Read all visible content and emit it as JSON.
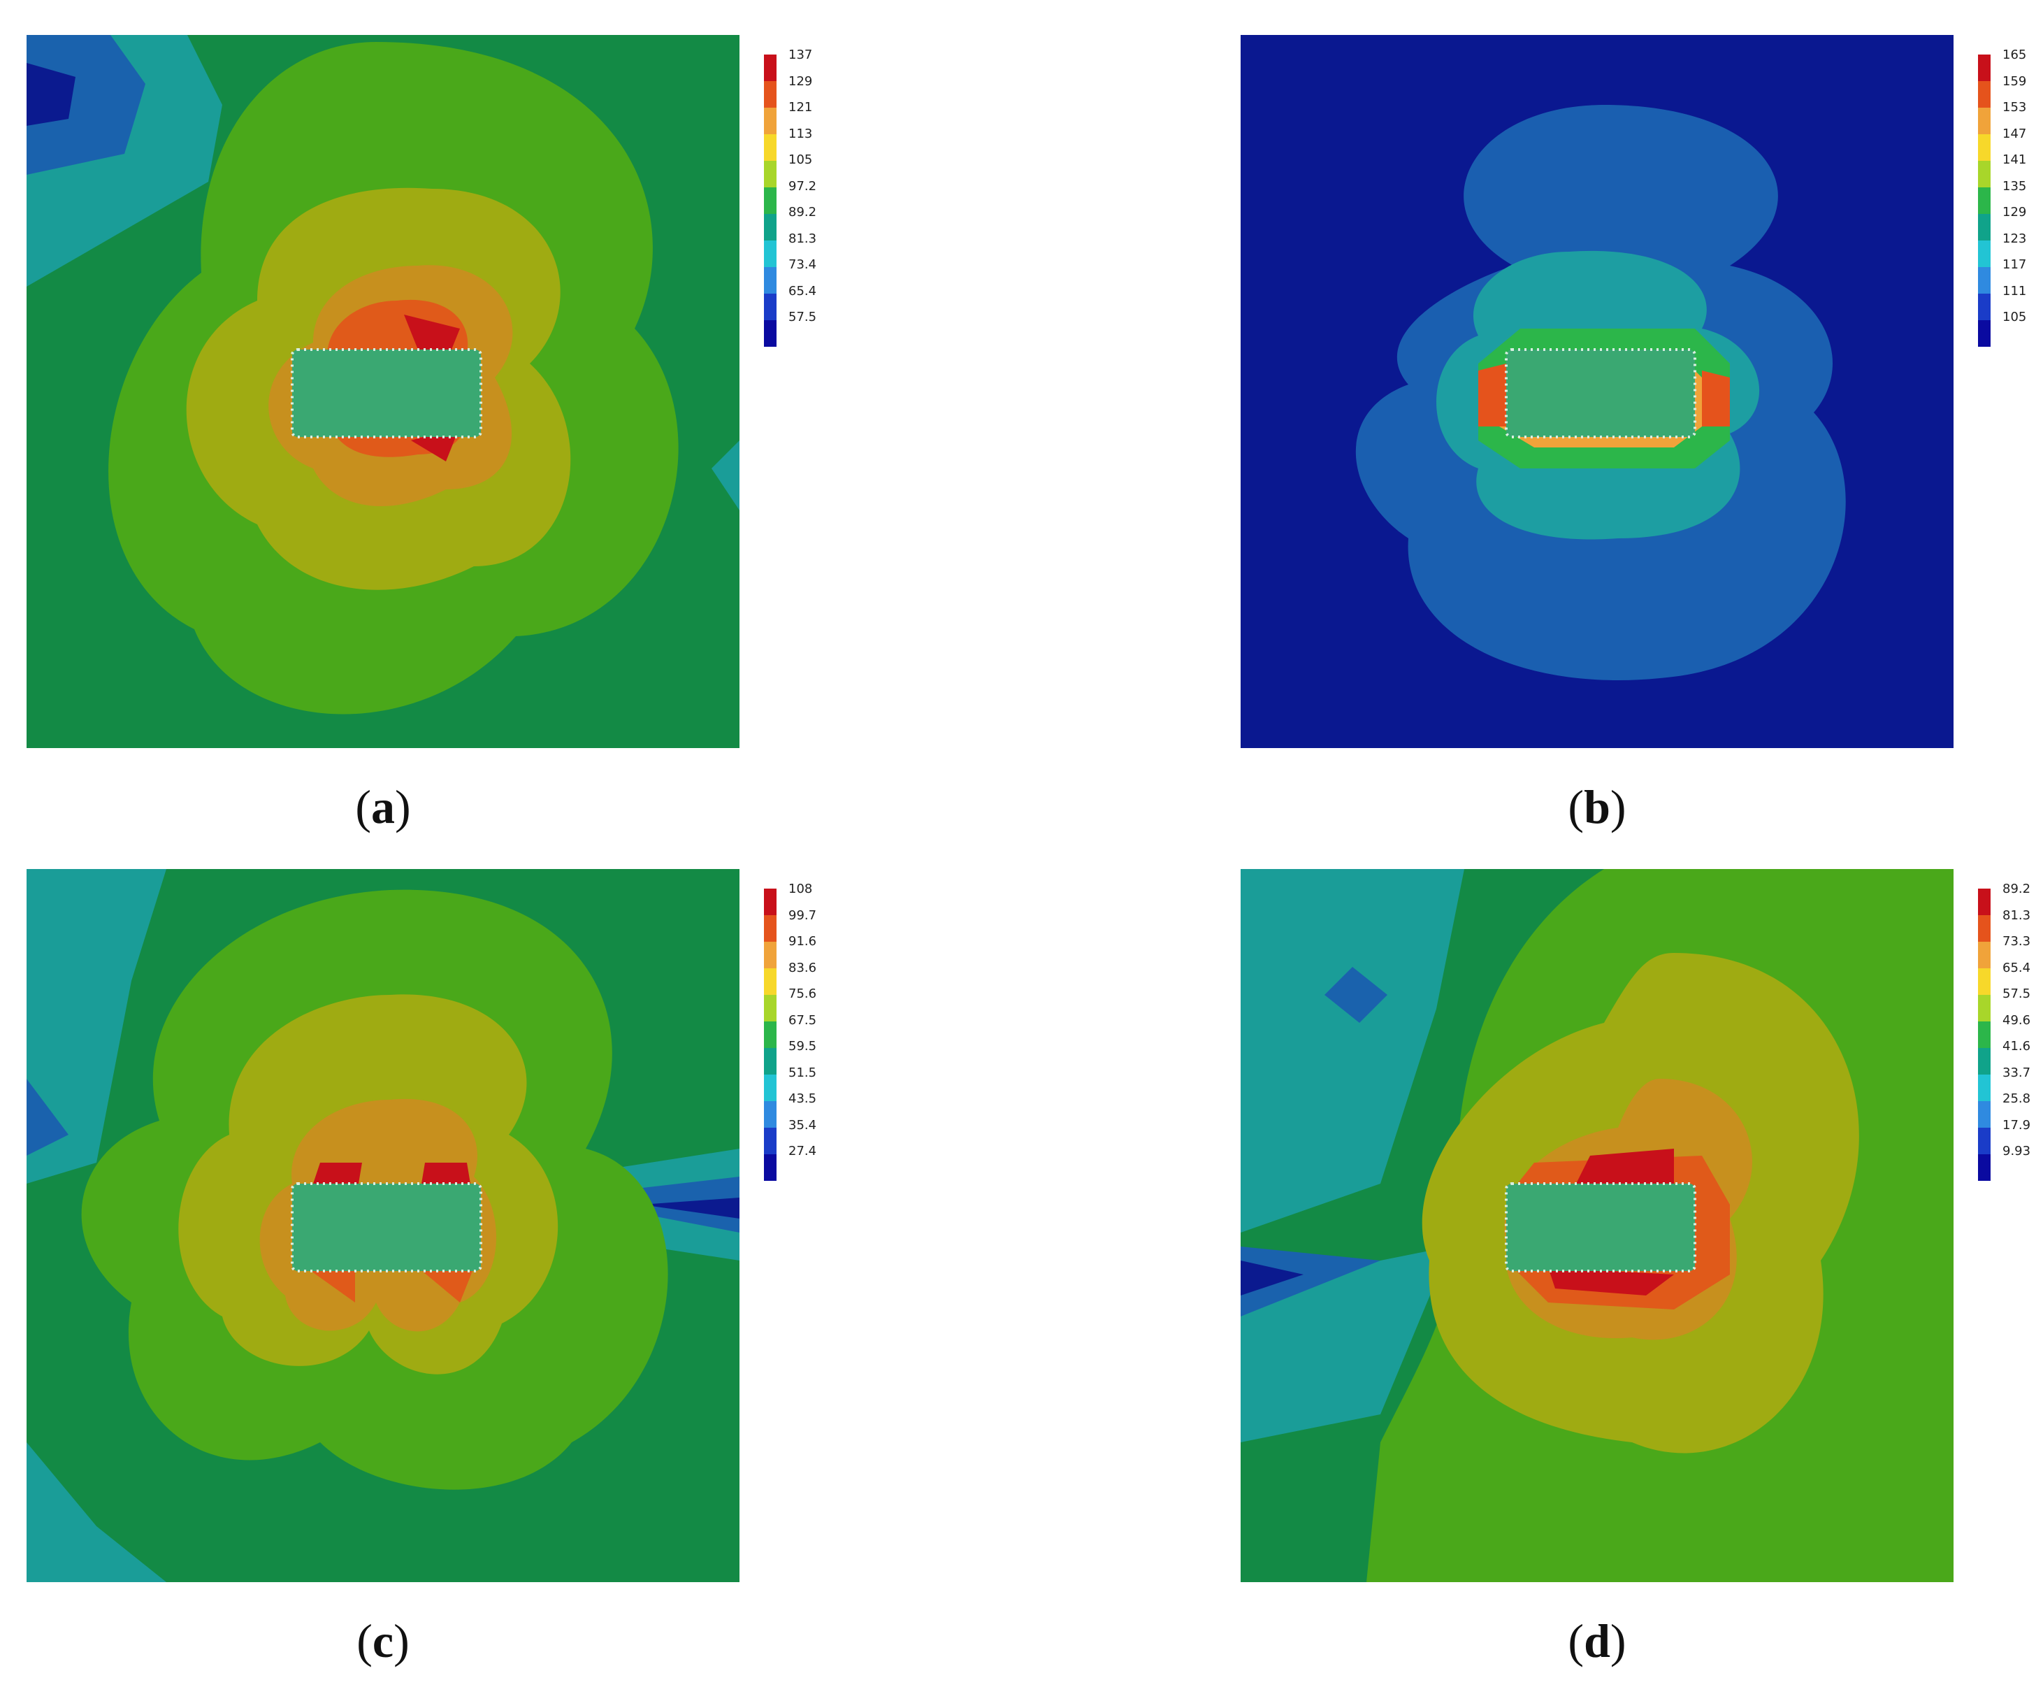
{
  "colorscale": [
    "#c8101a",
    "#e5531c",
    "#f0a33a",
    "#f7d82a",
    "#a8d62a",
    "#2cb64a",
    "#10a38a",
    "#22c4d4",
    "#2f8ae0",
    "#1a3cc8",
    "#0a0aa0"
  ],
  "panels": [
    {
      "label": "a",
      "ticks": [
        "137",
        "129",
        "121",
        "113",
        "105",
        "97.2",
        "89.2",
        "81.3",
        "73.4",
        "65.4",
        "57.5"
      ]
    },
    {
      "label": "b",
      "ticks": [
        "165",
        "159",
        "153",
        "147",
        "141",
        "135",
        "129",
        "123",
        "117",
        "111",
        "105"
      ]
    },
    {
      "label": "c",
      "ticks": [
        "108",
        "99.7",
        "91.6",
        "83.6",
        "75.6",
        "67.5",
        "59.5",
        "51.5",
        "43.5",
        "35.4",
        "27.4"
      ]
    },
    {
      "label": "d",
      "ticks": [
        "89.2",
        "81.3",
        "73.3",
        "65.4",
        "57.5",
        "49.6",
        "41.6",
        "33.7",
        "25.8",
        "17.9",
        "9.93"
      ]
    }
  ]
}
